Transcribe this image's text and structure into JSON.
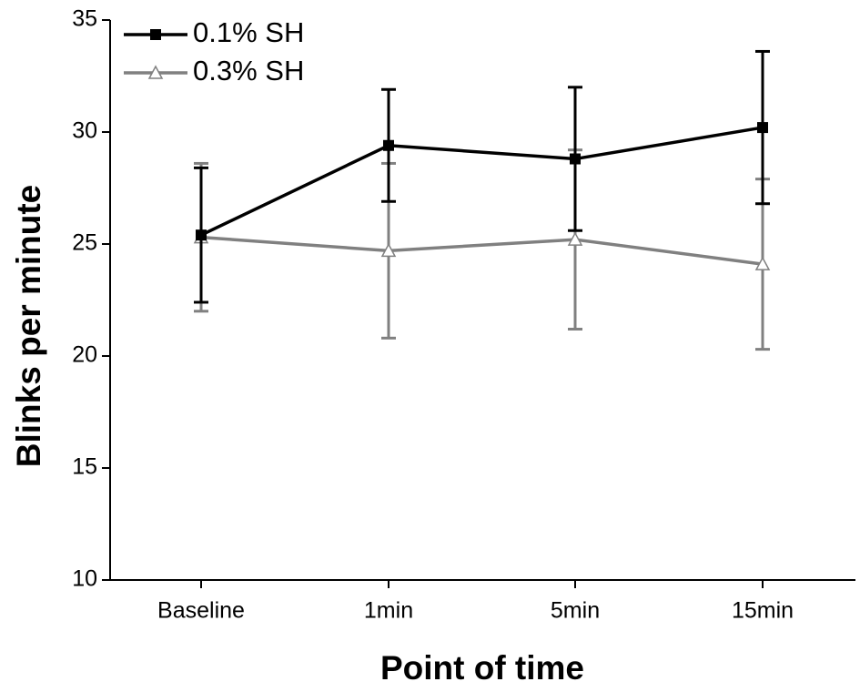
{
  "chart_data": {
    "type": "line",
    "xlabel": "Point of time",
    "ylabel": "Blinks per minute",
    "categories": [
      "Baseline",
      "1min",
      "5min",
      "15min"
    ],
    "ylim": [
      10,
      35
    ],
    "yticks": [
      10,
      15,
      20,
      25,
      30,
      35
    ],
    "grid": false,
    "legend_position": "top-left",
    "series": [
      {
        "name": "0.1% SH",
        "color": "#000000",
        "marker": "filled-square",
        "values": [
          25.4,
          29.4,
          28.8,
          30.2
        ],
        "error": [
          3.0,
          2.5,
          3.2,
          3.4
        ]
      },
      {
        "name": "0.3% SH",
        "color": "#808080",
        "marker": "open-triangle",
        "values": [
          25.3,
          24.7,
          25.2,
          24.1
        ],
        "error": [
          3.3,
          3.9,
          4.0,
          3.8
        ]
      }
    ]
  }
}
